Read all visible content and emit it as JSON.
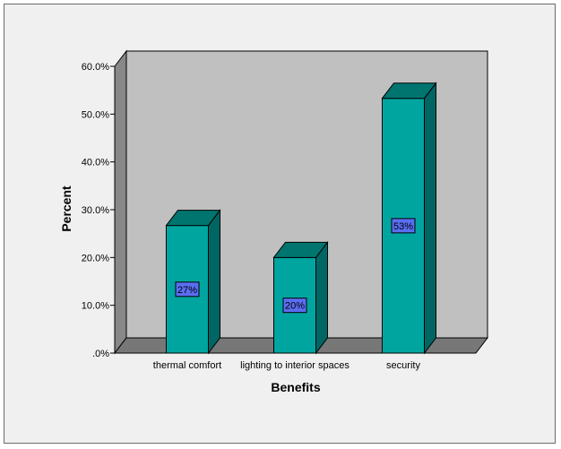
{
  "chart_data": {
    "type": "bar",
    "categories": [
      "thermal comfort",
      "lighting to interior spaces",
      "security"
    ],
    "values": [
      26.7,
      20.0,
      53.3
    ],
    "data_labels": [
      "27%",
      "20%",
      "53%"
    ],
    "xlabel": "Benefits",
    "ylabel": "Percent",
    "ylim": [
      0,
      60
    ],
    "yticks": [
      0,
      10,
      20,
      30,
      40,
      50,
      60
    ],
    "ytick_labels": [
      ".0%",
      "10.0%",
      "20.0%",
      "30.0%",
      "40.0%",
      "50.0%",
      "60.0%"
    ],
    "grid": false,
    "legend": "none",
    "colors": {
      "bar_front": "#00a5a0",
      "bar_side": "#006664",
      "bar_top": "#007570",
      "plot_wall": "#c0c0c0",
      "side_wall": "#888888",
      "floor": "#777777",
      "label_box": "#5a6ef2",
      "background": "#f0f0f0"
    }
  }
}
